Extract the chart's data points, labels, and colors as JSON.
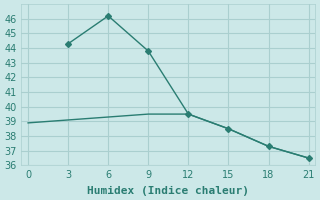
{
  "line1_x": [
    0,
    3,
    6,
    9,
    12,
    15,
    18,
    21
  ],
  "line1_y": [
    38.9,
    39.1,
    39.3,
    39.5,
    39.5,
    38.5,
    37.3,
    36.5
  ],
  "line2_x": [
    3,
    6,
    9,
    12,
    15,
    18,
    21
  ],
  "line2_y": [
    44.3,
    46.2,
    43.8,
    39.5,
    38.5,
    37.3,
    36.5
  ],
  "line_color": "#2a7d72",
  "marker": "D",
  "marker_size": 3,
  "xlabel": "Humidex (Indice chaleur)",
  "ylim": [
    36,
    47
  ],
  "xlim": [
    -0.5,
    21.5
  ],
  "xticks": [
    0,
    3,
    6,
    9,
    12,
    15,
    18,
    21
  ],
  "yticks": [
    36,
    37,
    38,
    39,
    40,
    41,
    42,
    43,
    44,
    45,
    46
  ],
  "bg_color": "#cce8e8",
  "grid_color": "#aacfcf",
  "font_color": "#2a7d72",
  "xlabel_fontsize": 8,
  "tick_fontsize": 7
}
